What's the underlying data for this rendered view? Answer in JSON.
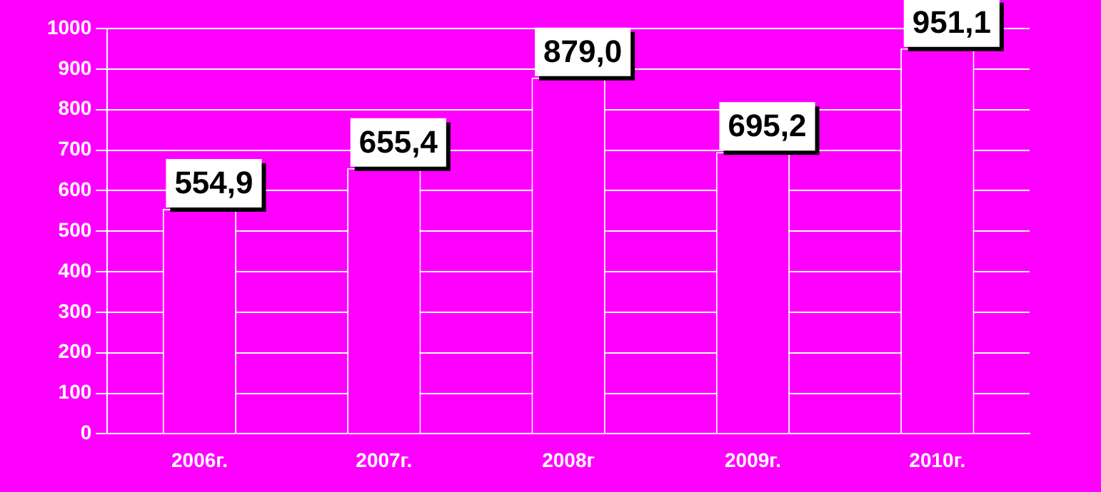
{
  "chart_data": {
    "type": "bar",
    "categories": [
      "2006г.",
      "2007г.",
      "2008г",
      "2009г.",
      "2010г."
    ],
    "values": [
      554.9,
      655.4,
      879.0,
      695.2,
      951.1
    ],
    "value_labels": [
      "554,9",
      "655,4",
      "879,0",
      "695,2",
      "951,1"
    ],
    "colors": [
      "#ff00ff",
      "#ff00ff",
      "#ff00ff",
      "#ff00ff",
      "#ff00ff"
    ],
    "ylim": [
      0,
      1000
    ],
    "yticks": [
      0,
      100,
      200,
      300,
      400,
      500,
      600,
      700,
      800,
      900,
      1000
    ],
    "grid": "y",
    "legend": false
  }
}
